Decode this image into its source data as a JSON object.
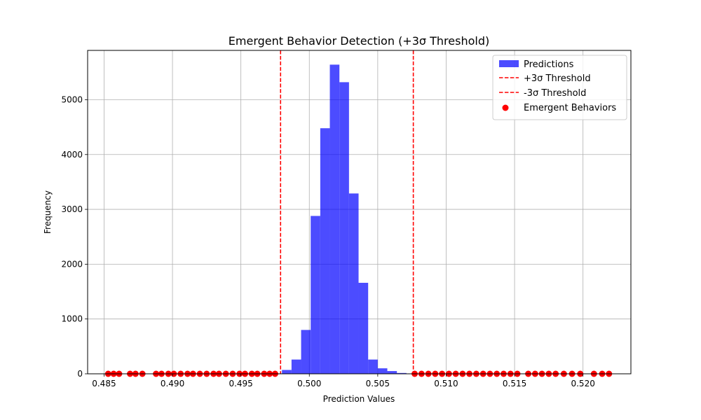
{
  "chart_data": {
    "type": "bar",
    "title": "Emergent Behavior Detection (+3σ Threshold)",
    "xlabel": "Prediction Values",
    "ylabel": "Frequency",
    "xlim": [
      0.4838,
      0.5235
    ],
    "ylim": [
      0,
      5900
    ],
    "xticks": [
      "0.485",
      "0.490",
      "0.495",
      "0.500",
      "0.505",
      "0.510",
      "0.515",
      "0.520"
    ],
    "yticks": [
      "0",
      "1000",
      "2000",
      "3000",
      "4000",
      "5000"
    ],
    "grid": true,
    "legend_position": "top-right",
    "histogram": {
      "name": "Predictions",
      "color": "#0000ff",
      "bin_start": 0.498,
      "bin_width": 0.0007,
      "counts": [
        70,
        260,
        800,
        2880,
        4480,
        5640,
        5320,
        3290,
        1660,
        260,
        100,
        50,
        15
      ]
    },
    "thresholds": [
      {
        "name": "+3σ Threshold",
        "value": 0.5076,
        "color": "#ff0000"
      },
      {
        "name": "-3σ Threshold",
        "value": 0.4979,
        "color": "#ff0000"
      }
    ],
    "emergent_behaviors": {
      "name": "Emergent Behaviors",
      "color": "#ff0000",
      "y": 0,
      "x": [
        0.4853,
        0.4857,
        0.4861,
        0.4869,
        0.4873,
        0.4878,
        0.4888,
        0.4892,
        0.4897,
        0.4901,
        0.4906,
        0.4911,
        0.4915,
        0.492,
        0.4925,
        0.493,
        0.4934,
        0.4939,
        0.4944,
        0.4949,
        0.4953,
        0.4958,
        0.4962,
        0.4967,
        0.4971,
        0.4975,
        0.5077,
        0.5082,
        0.5087,
        0.5092,
        0.5097,
        0.5102,
        0.5107,
        0.5112,
        0.5117,
        0.5122,
        0.5127,
        0.5132,
        0.5137,
        0.5142,
        0.5147,
        0.5152,
        0.516,
        0.5165,
        0.517,
        0.5175,
        0.518,
        0.5186,
        0.5192,
        0.5198,
        0.5208,
        0.5214,
        0.5219
      ]
    }
  }
}
